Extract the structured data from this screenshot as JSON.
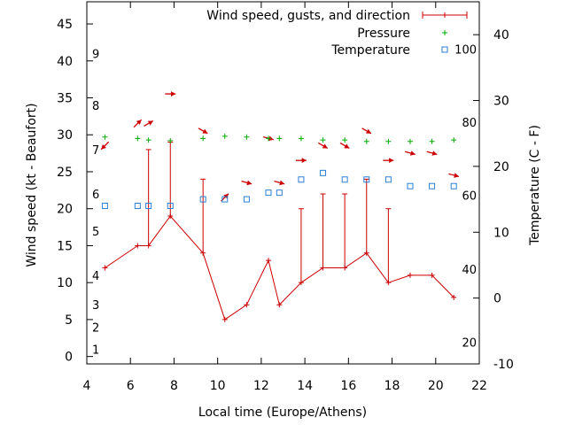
{
  "chart_data": {
    "type": "line",
    "xlabel": "Local time (Europe/Athens)",
    "ylabel": "Wind speed (kt - Beaufort)",
    "y2label": "Temperature (C - F)",
    "xlim": [
      4,
      22
    ],
    "ylim": [
      -1,
      48
    ],
    "y2lim": [
      -10,
      45
    ],
    "x_ticks": [
      4,
      6,
      8,
      10,
      12,
      14,
      16,
      18,
      20,
      22
    ],
    "y_ticks": [
      0,
      5,
      10,
      15,
      20,
      25,
      30,
      35,
      40,
      45
    ],
    "y2_ticks": [
      -10,
      0,
      10,
      20,
      30,
      40
    ],
    "beaufort_labels": [
      {
        "label": "1",
        "kt": 1
      },
      {
        "label": "2",
        "kt": 4
      },
      {
        "label": "3",
        "kt": 7
      },
      {
        "label": "4",
        "kt": 11
      },
      {
        "label": "5",
        "kt": 17
      },
      {
        "label": "6",
        "kt": 22
      },
      {
        "label": "7",
        "kt": 28
      },
      {
        "label": "8",
        "kt": 34
      },
      {
        "label": "9",
        "kt": 41
      }
    ],
    "fahrenheit_labels": [
      {
        "label": "20",
        "c": -6.7
      },
      {
        "label": "40",
        "c": 4.4
      },
      {
        "label": "60",
        "c": 15.6
      },
      {
        "label": "80",
        "c": 26.7
      },
      {
        "label": "100",
        "c": 37.8
      }
    ],
    "legend": {
      "position": "top-right",
      "entries": [
        "Wind speed, gusts, and direction",
        "Pressure",
        "Temperature"
      ]
    },
    "colors": {
      "wind": "#cc0000",
      "pressure": "#00aa00",
      "temperature": "#2b7fd6"
    },
    "series": [
      {
        "name": "Wind speed, gusts, and direction",
        "points": [
          {
            "x": 4.83,
            "y": 12,
            "gust": null,
            "dir": 225
          },
          {
            "x": 6.33,
            "y": 15,
            "gust": null,
            "dir": 45
          },
          {
            "x": 6.83,
            "y": 15,
            "gust": 28,
            "dir": 60
          },
          {
            "x": 7.83,
            "y": 19,
            "gust": 29,
            "dir": 90
          },
          {
            "x": 9.33,
            "y": 14,
            "gust": 24,
            "dir": 120
          },
          {
            "x": 10.33,
            "y": 5,
            "gust": null,
            "dir": 45
          },
          {
            "x": 11.33,
            "y": 7,
            "gust": null,
            "dir": 105
          },
          {
            "x": 12.33,
            "y": 13,
            "gust": null,
            "dir": 105
          },
          {
            "x": 12.83,
            "y": 7,
            "gust": null,
            "dir": 105
          },
          {
            "x": 13.83,
            "y": 10,
            "gust": 20,
            "dir": 90
          },
          {
            "x": 14.83,
            "y": 12,
            "gust": 22,
            "dir": 120
          },
          {
            "x": 15.83,
            "y": 12,
            "gust": 22,
            "dir": 120
          },
          {
            "x": 16.83,
            "y": 14,
            "gust": 24,
            "dir": 120
          },
          {
            "x": 17.83,
            "y": 10,
            "gust": 20,
            "dir": 90
          },
          {
            "x": 18.83,
            "y": 11,
            "gust": null,
            "dir": 105
          },
          {
            "x": 19.83,
            "y": 11,
            "gust": null,
            "dir": 105
          },
          {
            "x": 20.83,
            "y": 8,
            "gust": null,
            "dir": 105
          }
        ]
      },
      {
        "name": "Pressure",
        "points": [
          {
            "x": 4.83,
            "y": 29.7
          },
          {
            "x": 6.33,
            "y": 29.5
          },
          {
            "x": 6.83,
            "y": 29.3
          },
          {
            "x": 7.83,
            "y": 29.2
          },
          {
            "x": 9.33,
            "y": 29.5
          },
          {
            "x": 10.33,
            "y": 29.8
          },
          {
            "x": 11.33,
            "y": 29.7
          },
          {
            "x": 12.33,
            "y": 29.5
          },
          {
            "x": 12.83,
            "y": 29.5
          },
          {
            "x": 13.83,
            "y": 29.5
          },
          {
            "x": 14.83,
            "y": 29.3
          },
          {
            "x": 15.83,
            "y": 29.3
          },
          {
            "x": 16.83,
            "y": 29.1
          },
          {
            "x": 17.83,
            "y": 29.1
          },
          {
            "x": 18.83,
            "y": 29.1
          },
          {
            "x": 19.83,
            "y": 29.1
          },
          {
            "x": 20.83,
            "y": 29.3
          }
        ]
      },
      {
        "name": "Temperature",
        "axis": "right",
        "points": [
          {
            "x": 4.83,
            "y": 14
          },
          {
            "x": 6.33,
            "y": 14
          },
          {
            "x": 6.83,
            "y": 14
          },
          {
            "x": 7.83,
            "y": 14
          },
          {
            "x": 9.33,
            "y": 15
          },
          {
            "x": 10.33,
            "y": 15
          },
          {
            "x": 11.33,
            "y": 15
          },
          {
            "x": 12.33,
            "y": 16
          },
          {
            "x": 12.83,
            "y": 16
          },
          {
            "x": 13.83,
            "y": 18
          },
          {
            "x": 14.83,
            "y": 19
          },
          {
            "x": 15.83,
            "y": 18
          },
          {
            "x": 16.83,
            "y": 18
          },
          {
            "x": 17.83,
            "y": 18
          },
          {
            "x": 18.83,
            "y": 17
          },
          {
            "x": 19.83,
            "y": 17
          },
          {
            "x": 20.83,
            "y": 17
          }
        ]
      }
    ]
  }
}
